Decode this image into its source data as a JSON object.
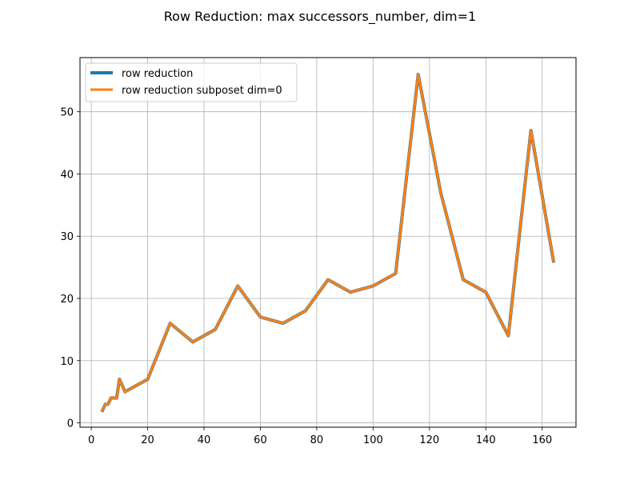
{
  "chart_data": {
    "type": "line",
    "title": "Row Reduction: max successors_number, dim=1",
    "xlabel": "",
    "ylabel": "",
    "xlim": [
      -4.0,
      172.0
    ],
    "ylim": [
      -0.7,
      58.7
    ],
    "xticks": [
      0,
      20,
      40,
      60,
      80,
      100,
      120,
      140,
      160
    ],
    "yticks": [
      0,
      10,
      20,
      30,
      40,
      50
    ],
    "grid": true,
    "legend_position": "upper left",
    "x": [
      4,
      5,
      6,
      7,
      8,
      9,
      10,
      12,
      20,
      28,
      36,
      44,
      52,
      60,
      68,
      76,
      84,
      92,
      100,
      108,
      116,
      124,
      132,
      140,
      148,
      156,
      164
    ],
    "series": [
      {
        "name": "row reduction",
        "color": "#1f77b4",
        "values": [
          2,
          3,
          3,
          4,
          4,
          4,
          7,
          5,
          7,
          16,
          13,
          15,
          22,
          17,
          16,
          18,
          23,
          21,
          22,
          24,
          56,
          37,
          23,
          21,
          14,
          47,
          26
        ]
      },
      {
        "name": "row reduction subposet dim=0",
        "color": "#ff7f0e",
        "values": [
          2,
          3,
          3,
          4,
          4,
          4,
          7,
          5,
          7,
          16,
          13,
          15,
          22,
          17,
          16,
          18,
          23,
          21,
          22,
          24,
          56,
          37,
          23,
          21,
          14,
          47,
          26
        ]
      }
    ]
  }
}
